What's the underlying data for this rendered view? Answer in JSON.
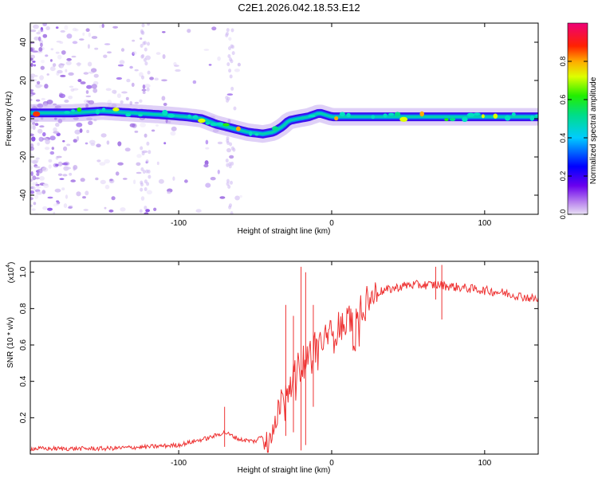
{
  "title": "C2E1.2026.042.18.53.E12",
  "colors": {
    "snr_line": "#ee3333",
    "frame": "#000000"
  },
  "chart_data": [
    {
      "type": "heatmap",
      "name": "spectrogram",
      "xlabel": "Height of straight line (km)",
      "ylabel": "Frequency (Hz)",
      "xlim": [
        -197,
        135
      ],
      "ylim": [
        -50,
        50
      ],
      "xticks": [
        -100,
        0,
        100
      ],
      "xtick_labels": [
        "-100",
        "0",
        "100"
      ],
      "yticks": [
        40,
        20,
        0,
        -20,
        -40
      ],
      "ytick_labels": [
        "40",
        "20",
        "0",
        "-20",
        "-40"
      ],
      "ridge": [
        {
          "x": -197,
          "y": 3
        },
        {
          "x": -170,
          "y": 3
        },
        {
          "x": -150,
          "y": 4
        },
        {
          "x": -130,
          "y": 3
        },
        {
          "x": -110,
          "y": 2
        },
        {
          "x": -95,
          "y": 1
        },
        {
          "x": -85,
          "y": 0
        },
        {
          "x": -75,
          "y": -3
        },
        {
          "x": -65,
          "y": -5
        },
        {
          "x": -55,
          "y": -7
        },
        {
          "x": -45,
          "y": -8
        },
        {
          "x": -38,
          "y": -7
        },
        {
          "x": -32,
          "y": -4
        },
        {
          "x": -28,
          "y": -1
        },
        {
          "x": -22,
          "y": 0
        },
        {
          "x": -15,
          "y": 1
        },
        {
          "x": -8,
          "y": 3
        },
        {
          "x": 0,
          "y": 1
        },
        {
          "x": 20,
          "y": 1
        },
        {
          "x": 60,
          "y": 1
        },
        {
          "x": 100,
          "y": 1
        },
        {
          "x": 135,
          "y": 1
        }
      ],
      "colorbar": {
        "label": "Normalized spectral amplitude",
        "range": [
          0,
          1
        ],
        "ticks": [
          0.0,
          0.2,
          0.4,
          0.6,
          0.8
        ],
        "tick_labels": [
          "0.0",
          "0.2",
          "0.4",
          "0.6",
          "0.8"
        ]
      }
    },
    {
      "type": "line",
      "name": "snr",
      "xlabel": "Height of straight line (km)",
      "ylabel": "SNR (10 * v/v)",
      "scale_label": "(x10",
      "scale_exponent": "4",
      "scale_suffix": ")",
      "xlim": [
        -197,
        135
      ],
      "ylim": [
        0,
        1.06
      ],
      "xticks": [
        -100,
        0,
        100
      ],
      "xtick_labels": [
        "-100",
        "0",
        "100"
      ],
      "yticks": [
        0.2,
        0.4,
        0.6,
        0.8,
        1.0
      ],
      "ytick_labels": [
        "0.2",
        "0.4",
        "0.6",
        "0.8",
        "1.0"
      ],
      "series": [
        {
          "name": "SNR",
          "points": [
            {
              "x": -197,
              "y": 0.03
            },
            {
              "x": -150,
              "y": 0.03
            },
            {
              "x": -120,
              "y": 0.04
            },
            {
              "x": -100,
              "y": 0.05
            },
            {
              "x": -80,
              "y": 0.09
            },
            {
              "x": -70,
              "y": 0.12
            },
            {
              "x": -60,
              "y": 0.08
            },
            {
              "x": -50,
              "y": 0.07
            },
            {
              "x": -40,
              "y": 0.14
            },
            {
              "x": -30,
              "y": 0.35
            },
            {
              "x": -20,
              "y": 0.5
            },
            {
              "x": -10,
              "y": 0.6
            },
            {
              "x": 0,
              "y": 0.66
            },
            {
              "x": 10,
              "y": 0.74
            },
            {
              "x": 20,
              "y": 0.82
            },
            {
              "x": 30,
              "y": 0.89
            },
            {
              "x": 50,
              "y": 0.93
            },
            {
              "x": 70,
              "y": 0.93
            },
            {
              "x": 90,
              "y": 0.91
            },
            {
              "x": 110,
              "y": 0.89
            },
            {
              "x": 135,
              "y": 0.85
            }
          ],
          "spikes": [
            {
              "x": -20,
              "y": 1.03,
              "low": 0.02
            },
            {
              "x": -17,
              "y": 1.0,
              "low": 0.05
            },
            {
              "x": -30,
              "y": 0.82,
              "low": 0.1
            },
            {
              "x": -25,
              "y": 0.76,
              "low": 0.12
            },
            {
              "x": -12,
              "y": 0.82,
              "low": 0.26
            },
            {
              "x": -70,
              "y": 0.26,
              "low": 0.04
            },
            {
              "x": 68,
              "y": 1.03,
              "low": 0.85
            },
            {
              "x": 72,
              "y": 1.04,
              "low": 0.74
            }
          ]
        }
      ]
    }
  ]
}
